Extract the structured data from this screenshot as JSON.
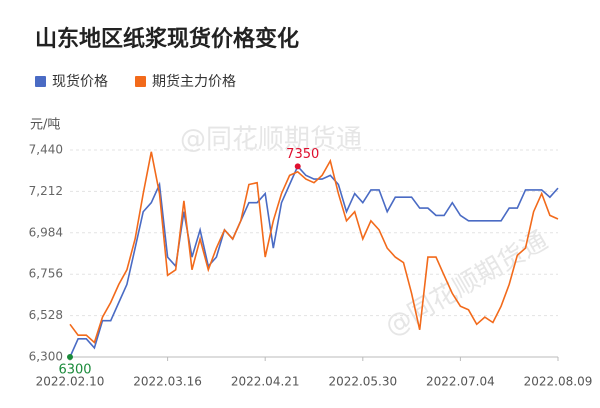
{
  "chart_data": {
    "type": "line",
    "title": "山东地区纸浆现货价格变化",
    "y_unit": "元/吨",
    "watermark": "@同花顺期货通",
    "categories": [
      "2022.02.10",
      null,
      null,
      null,
      null,
      null,
      null,
      null,
      null,
      null,
      null,
      null,
      "2022.03.16",
      null,
      null,
      null,
      null,
      null,
      null,
      null,
      null,
      null,
      null,
      null,
      "2022.04.21",
      null,
      null,
      null,
      null,
      null,
      null,
      null,
      null,
      null,
      null,
      null,
      "2022.05.30",
      null,
      null,
      null,
      null,
      null,
      null,
      null,
      null,
      null,
      null,
      null,
      "2022.07.04",
      null,
      null,
      null,
      null,
      null,
      null,
      null,
      null,
      null,
      null,
      null,
      "2022.08.09"
    ],
    "series": [
      {
        "name": "现货价格",
        "color": "#4a6bc4",
        "values": [
          6300,
          6400,
          6400,
          6350,
          6500,
          6500,
          6600,
          6700,
          6900,
          7100,
          7150,
          7250,
          6850,
          6800,
          7100,
          6850,
          7000,
          6800,
          6850,
          7000,
          6950,
          7050,
          7150,
          7150,
          7200,
          6900,
          7150,
          7250,
          7350,
          7300,
          7280,
          7280,
          7300,
          7250,
          7100,
          7200,
          7150,
          7220,
          7220,
          7100,
          7180,
          7180,
          7180,
          7120,
          7120,
          7080,
          7080,
          7150,
          7080,
          7050,
          7050,
          7050,
          7050,
          7050,
          7120,
          7120,
          7220,
          7220,
          7220,
          7180,
          7230
        ]
      },
      {
        "name": "期货主力价格",
        "color": "#f26a1b",
        "values": [
          6480,
          6420,
          6420,
          6380,
          6520,
          6600,
          6700,
          6780,
          6950,
          7200,
          7430,
          7200,
          6750,
          6780,
          7160,
          6780,
          6950,
          6780,
          6900,
          7000,
          6950,
          7050,
          7250,
          7260,
          6850,
          7050,
          7200,
          7300,
          7320,
          7280,
          7260,
          7300,
          7380,
          7200,
          7050,
          7100,
          6950,
          7050,
          7000,
          6900,
          6850,
          6820,
          6650,
          6450,
          6850,
          6850,
          6750,
          6650,
          6580,
          6560,
          6480,
          6520,
          6490,
          6580,
          6700,
          6860,
          6900,
          7100,
          7200,
          7080,
          7060
        ]
      }
    ],
    "markers": [
      {
        "series": 0,
        "index": 28,
        "color": "#e0102f",
        "position": "above"
      },
      {
        "series": 0,
        "index": 0,
        "color": "#1a8a3a",
        "position": "below"
      }
    ],
    "ylim": [
      6300,
      7440
    ],
    "yticks": [
      {
        "value": 6300,
        "label": "6,300"
      },
      {
        "value": 6528,
        "label": "6,528"
      },
      {
        "value": 6756,
        "label": "6,756"
      },
      {
        "value": 6984,
        "label": "6,984"
      },
      {
        "value": 7212,
        "label": "7,212"
      },
      {
        "value": 7440,
        "label": "7,440"
      }
    ],
    "grid": true
  }
}
